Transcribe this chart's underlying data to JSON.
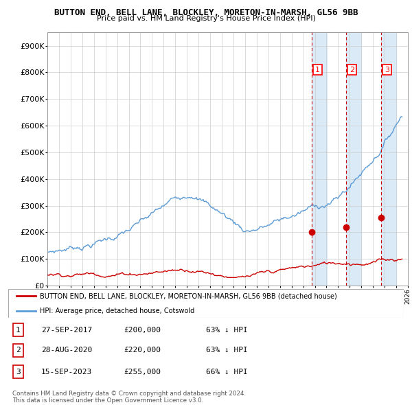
{
  "title": "BUTTON END, BELL LANE, BLOCKLEY, MORETON-IN-MARSH, GL56 9BB",
  "subtitle": "Price paid vs. HM Land Registry's House Price Index (HPI)",
  "hpi_color": "#5b9bd5",
  "price_color": "#cc0000",
  "vline_color": "#cc0000",
  "shade_color": "#dbeaf7",
  "ylim": [
    0,
    950000
  ],
  "yticks": [
    0,
    100000,
    200000,
    300000,
    400000,
    500000,
    600000,
    700000,
    800000,
    900000
  ],
  "ytick_labels": [
    "£0",
    "£100K",
    "£200K",
    "£300K",
    "£400K",
    "£500K",
    "£600K",
    "£700K",
    "£800K",
    "£900K"
  ],
  "sales": [
    {
      "year": 2017.75,
      "price": 200000,
      "label": "1"
    },
    {
      "year": 2020.67,
      "price": 220000,
      "label": "2"
    },
    {
      "year": 2023.71,
      "price": 255000,
      "label": "3"
    }
  ],
  "legend_line1": "BUTTON END, BELL LANE, BLOCKLEY, MORETON-IN-MARSH, GL56 9BB (detached house)",
  "legend_line2": "HPI: Average price, detached house, Cotswold",
  "table_rows": [
    {
      "num": "1",
      "date": "27-SEP-2017",
      "price": "£200,000",
      "pct": "63% ↓ HPI"
    },
    {
      "num": "2",
      "date": "28-AUG-2020",
      "price": "£220,000",
      "pct": "63% ↓ HPI"
    },
    {
      "num": "3",
      "date": "15-SEP-2023",
      "price": "£255,000",
      "pct": "66% ↓ HPI"
    }
  ],
  "footnote": "Contains HM Land Registry data © Crown copyright and database right 2024.\nThis data is licensed under the Open Government Licence v3.0."
}
